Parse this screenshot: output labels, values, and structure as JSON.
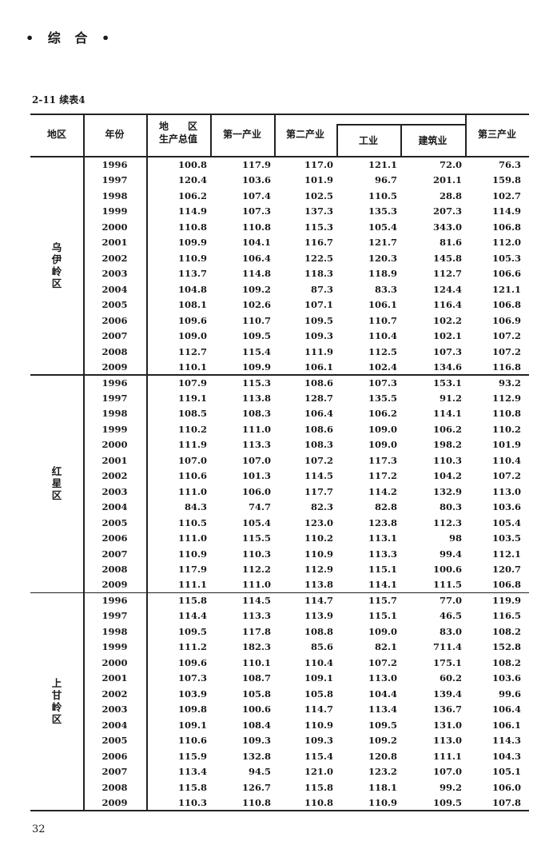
{
  "section_header": "• 综 合 •",
  "table_title": "2-11  续表4",
  "page_number": "32",
  "columns": {
    "region": "地区",
    "year": "年份",
    "gdp_line1": "地　　区",
    "gdp_line2": "生产总值",
    "primary": "第一产业",
    "secondary": "第二产业",
    "industry": "工业",
    "construction": "建筑业",
    "tertiary": "第三产业"
  },
  "regions": [
    {
      "name": "乌伊岭区",
      "rows": [
        [
          "1996",
          "100.8",
          "117.9",
          "117.0",
          "121.1",
          "72.0",
          "76.3"
        ],
        [
          "1997",
          "120.4",
          "103.6",
          "101.9",
          "96.7",
          "201.1",
          "159.8"
        ],
        [
          "1998",
          "106.2",
          "107.4",
          "102.5",
          "110.5",
          "28.8",
          "102.7"
        ],
        [
          "1999",
          "114.9",
          "107.3",
          "137.3",
          "135.3",
          "207.3",
          "114.9"
        ],
        [
          "2000",
          "110.8",
          "110.8",
          "115.3",
          "105.4",
          "343.0",
          "106.8"
        ],
        [
          "2001",
          "109.9",
          "104.1",
          "116.7",
          "121.7",
          "81.6",
          "112.0"
        ],
        [
          "2002",
          "110.9",
          "106.4",
          "122.5",
          "120.3",
          "145.8",
          "105.3"
        ],
        [
          "2003",
          "113.7",
          "114.8",
          "118.3",
          "118.9",
          "112.7",
          "106.6"
        ],
        [
          "2004",
          "104.8",
          "109.2",
          "87.3",
          "83.3",
          "124.4",
          "121.1"
        ],
        [
          "2005",
          "108.1",
          "102.6",
          "107.1",
          "106.1",
          "116.4",
          "106.8"
        ],
        [
          "2006",
          "109.6",
          "110.7",
          "109.5",
          "110.7",
          "102.2",
          "106.9"
        ],
        [
          "2007",
          "109.0",
          "109.5",
          "109.3",
          "110.4",
          "102.1",
          "107.2"
        ],
        [
          "2008",
          "112.7",
          "115.4",
          "111.9",
          "112.5",
          "107.3",
          "107.2"
        ],
        [
          "2009",
          "110.1",
          "109.9",
          "106.1",
          "102.4",
          "134.6",
          "116.8"
        ]
      ]
    },
    {
      "name": "红星区",
      "rows": [
        [
          "1996",
          "107.9",
          "115.3",
          "108.6",
          "107.3",
          "153.1",
          "93.2"
        ],
        [
          "1997",
          "119.1",
          "113.8",
          "128.7",
          "135.5",
          "91.2",
          "112.9"
        ],
        [
          "1998",
          "108.5",
          "108.3",
          "106.4",
          "106.2",
          "114.1",
          "110.8"
        ],
        [
          "1999",
          "110.2",
          "111.0",
          "108.6",
          "109.0",
          "106.2",
          "110.2"
        ],
        [
          "2000",
          "111.9",
          "113.3",
          "108.3",
          "109.0",
          "198.2",
          "101.9"
        ],
        [
          "2001",
          "107.0",
          "107.0",
          "107.2",
          "117.3",
          "110.3",
          "110.4"
        ],
        [
          "2002",
          "110.6",
          "101.3",
          "114.5",
          "117.2",
          "104.2",
          "107.2"
        ],
        [
          "2003",
          "111.0",
          "106.0",
          "117.7",
          "114.2",
          "132.9",
          "113.0"
        ],
        [
          "2004",
          "84.3",
          "74.7",
          "82.3",
          "82.8",
          "80.3",
          "103.6"
        ],
        [
          "2005",
          "110.5",
          "105.4",
          "123.0",
          "123.8",
          "112.3",
          "105.4"
        ],
        [
          "2006",
          "111.0",
          "115.5",
          "110.2",
          "113.1",
          "98",
          "103.5"
        ],
        [
          "2007",
          "110.9",
          "110.3",
          "110.9",
          "113.3",
          "99.4",
          "112.1"
        ],
        [
          "2008",
          "117.9",
          "112.2",
          "112.9",
          "115.1",
          "100.6",
          "120.7"
        ],
        [
          "2009",
          "111.1",
          "111.0",
          "113.8",
          "114.1",
          "111.5",
          "106.8"
        ]
      ]
    },
    {
      "name": "上甘岭区",
      "rows": [
        [
          "1996",
          "115.8",
          "114.5",
          "114.7",
          "115.7",
          "77.0",
          "119.9"
        ],
        [
          "1997",
          "114.4",
          "113.3",
          "113.9",
          "115.1",
          "46.5",
          "116.5"
        ],
        [
          "1998",
          "109.5",
          "117.8",
          "108.8",
          "109.0",
          "83.0",
          "108.2"
        ],
        [
          "1999",
          "111.2",
          "182.3",
          "85.6",
          "82.1",
          "711.4",
          "152.8"
        ],
        [
          "2000",
          "109.6",
          "110.1",
          "110.4",
          "107.2",
          "175.1",
          "108.2"
        ],
        [
          "2001",
          "107.3",
          "108.7",
          "109.1",
          "113.0",
          "60.2",
          "103.6"
        ],
        [
          "2002",
          "103.9",
          "105.8",
          "105.8",
          "104.4",
          "139.4",
          "99.6"
        ],
        [
          "2003",
          "109.8",
          "100.6",
          "114.7",
          "113.4",
          "136.7",
          "106.4"
        ],
        [
          "2004",
          "109.1",
          "108.4",
          "110.9",
          "109.5",
          "131.0",
          "106.1"
        ],
        [
          "2005",
          "110.6",
          "109.3",
          "109.3",
          "109.2",
          "113.0",
          "114.3"
        ],
        [
          "2006",
          "115.9",
          "132.8",
          "115.4",
          "120.8",
          "111.1",
          "104.3"
        ],
        [
          "2007",
          "113.4",
          "94.5",
          "121.0",
          "123.2",
          "107.0",
          "105.1"
        ],
        [
          "2008",
          "115.8",
          "126.7",
          "115.8",
          "118.1",
          "99.2",
          "106.0"
        ],
        [
          "2009",
          "110.3",
          "110.8",
          "110.8",
          "110.9",
          "109.5",
          "107.8"
        ]
      ]
    }
  ]
}
